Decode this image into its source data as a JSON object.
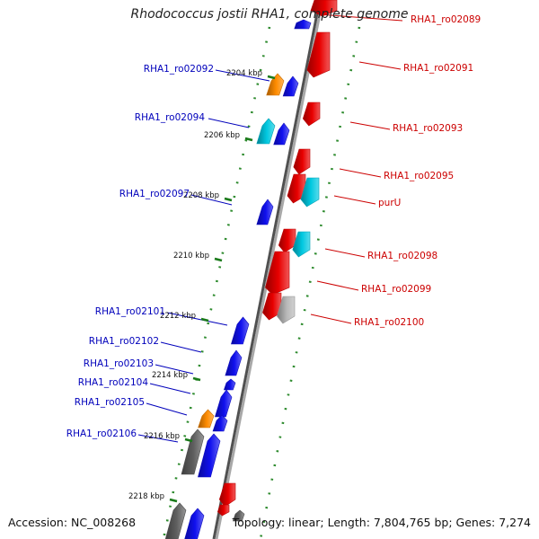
{
  "title": "Rhodococcus jostii RHA1, complete genome",
  "accession_text": "Accession: NC_008268",
  "topology_text": "Topology: linear; Length: 7,804,765 bp; Genes: 7,274",
  "colors": {
    "forward_gene": "#e80000",
    "reverse_gene": "#1010ee",
    "orange_gene": "#ff8c00",
    "cyan_gene": "#00c8e0",
    "gray_gene": "#606060",
    "light_gray_gene": "#b8b8b8",
    "label_forward": "#cc0000",
    "label_reverse": "#0000bb",
    "ruler_dots": "#2e8b2e",
    "backbone": "#7a7a7a"
  },
  "scale_ticks": [
    "2204 kbp",
    "2206 kbp",
    "2208 kbp",
    "2210 kbp",
    "2212 kbp",
    "2214 kbp",
    "2216 kbp",
    "2218 kbp"
  ],
  "gene_labels": {
    "forward": [
      "RHA1_ro02089",
      "RHA1_ro02091",
      "RHA1_ro02093",
      "RHA1_ro02095",
      "purU",
      "RHA1_ro02098",
      "RHA1_ro02099",
      "RHA1_ro02100"
    ],
    "reverse": [
      "RHA1_ro02092",
      "RHA1_ro02094",
      "RHA1_ro02097",
      "RHA1_ro02101",
      "RHA1_ro02102",
      "RHA1_ro02103",
      "RHA1_ro02104",
      "RHA1_ro02105",
      "RHA1_ro02106"
    ]
  }
}
